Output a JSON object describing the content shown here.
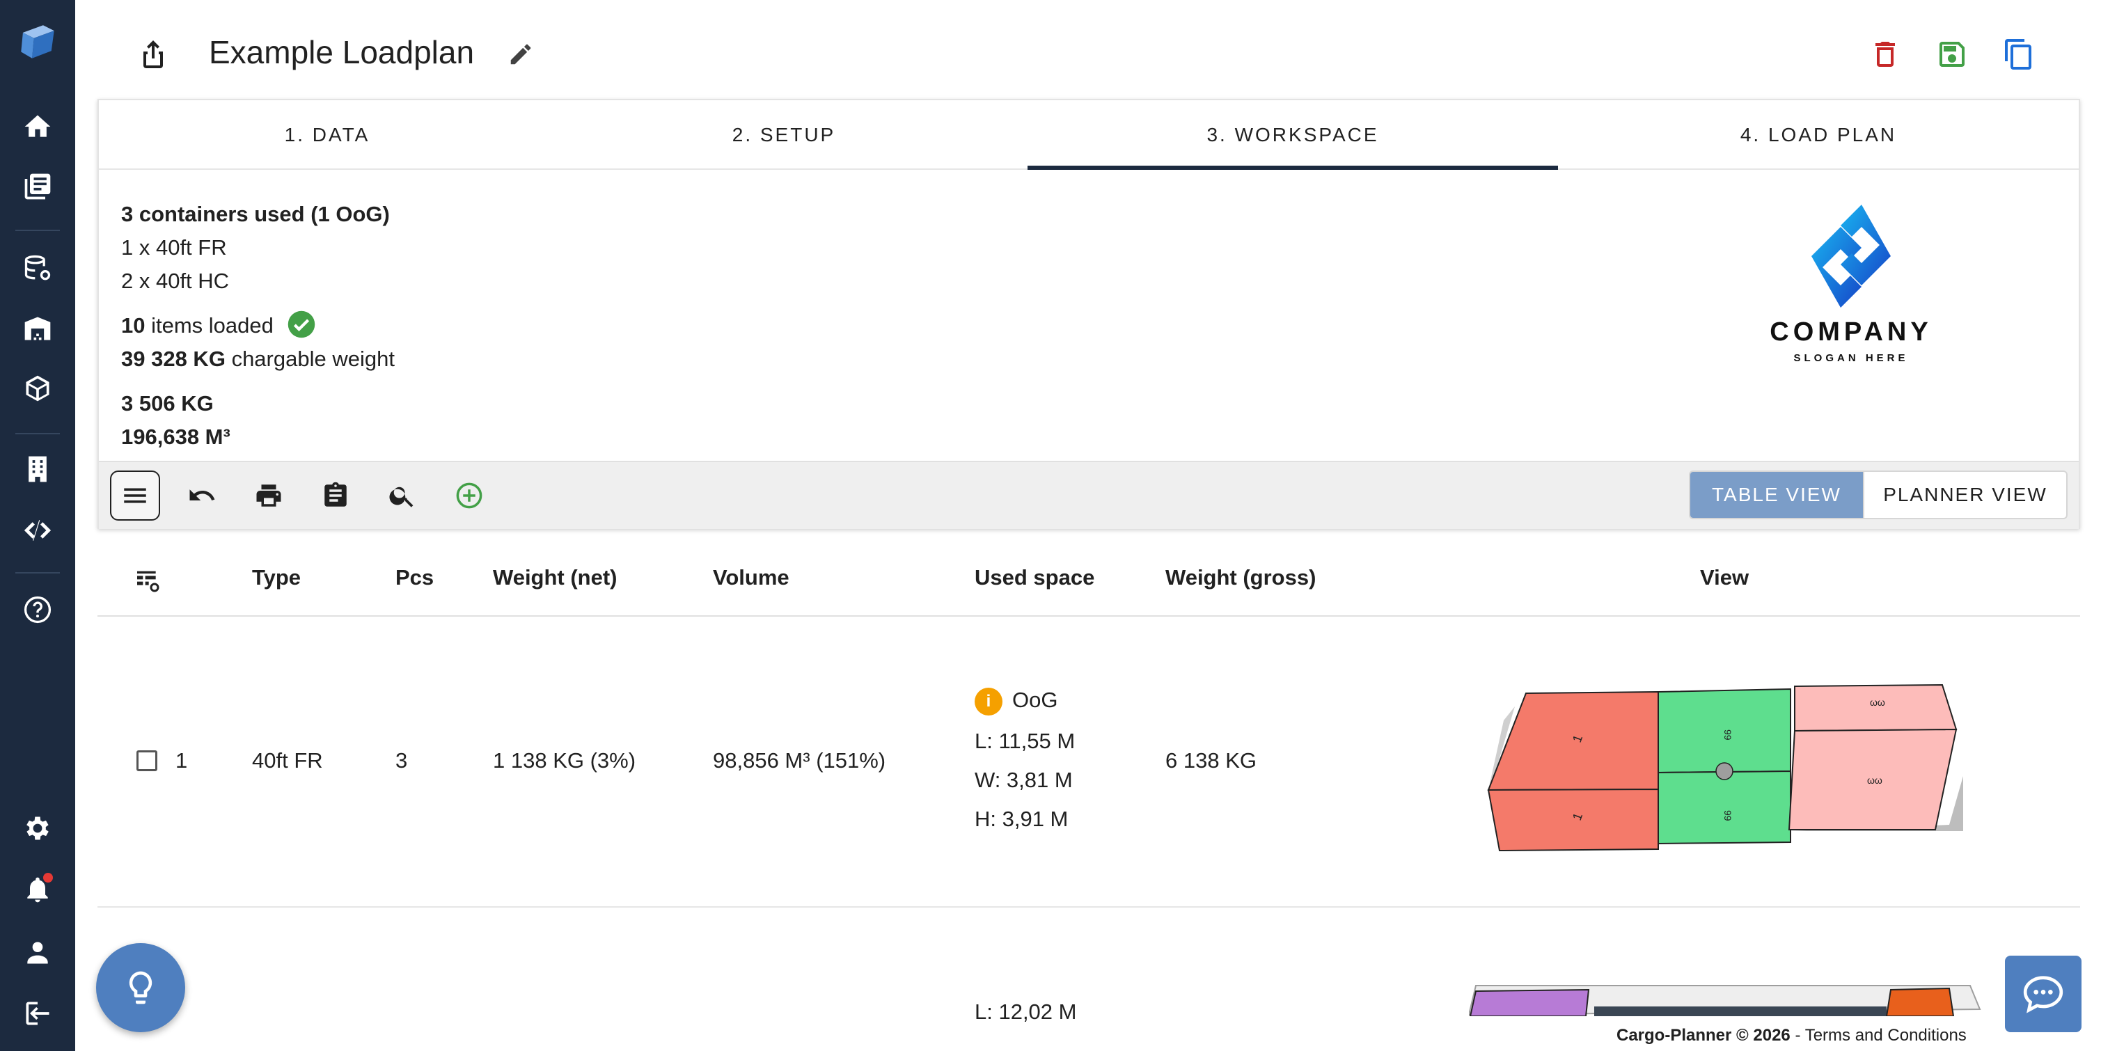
{
  "header": {
    "title": "Example Loadplan"
  },
  "tabs": [
    {
      "label": "1. DATA"
    },
    {
      "label": "2. SETUP"
    },
    {
      "label": "3. WORKSPACE",
      "active": true
    },
    {
      "label": "4. LOAD PLAN"
    }
  ],
  "summary": {
    "containers_used": "3 containers used (1 OoG)",
    "container_line_1": "1 x 40ft FR",
    "container_line_2": "2 x 40ft HC",
    "items_count": "10",
    "items_text": "items loaded",
    "chargable_value": "39 328 KG",
    "chargable_text": "chargable weight",
    "weight": "3 506 KG",
    "volume": "196,638 M³"
  },
  "logo": {
    "company": "COMPANY",
    "slogan": "SLOGAN HERE"
  },
  "view_toggle": {
    "table_label": "TABLE VIEW",
    "planner_label": "PLANNER VIEW",
    "selected": "TABLE VIEW"
  },
  "table": {
    "columns": [
      "Type",
      "Pcs",
      "Weight (net)",
      "Volume",
      "Used space",
      "Weight (gross)",
      "View"
    ],
    "rows": [
      {
        "index": "1",
        "type": "40ft FR",
        "pcs": "3",
        "weight_net": "1 138 KG (3%)",
        "volume": "98,856 M³ (151%)",
        "oog_label": "OoG",
        "length": "L: 11,55 M",
        "width": "W: 3,81 M",
        "height": "H: 3,91 M",
        "weight_gross": "6 138 KG"
      },
      {
        "length": "L: 12,02 M"
      }
    ]
  },
  "footer": {
    "brand": "Cargo-Planner © 2026",
    "separator": " - ",
    "terms": "Terms and Conditions"
  },
  "colors": {
    "sidebar": "#1c2a3f",
    "accent": "#4f7fbf",
    "toggle_selected": "#7b9dc8",
    "delete": "#c62828",
    "save": "#43a047",
    "copy": "#1e6fd9",
    "success": "#43a047",
    "warning": "#f5a000",
    "cargo_red": "#f47a6a",
    "cargo_green": "#5ede8e",
    "cargo_pink": "#fdbcba"
  }
}
